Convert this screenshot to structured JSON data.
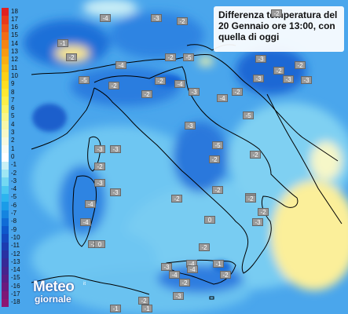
{
  "title_lines": [
    "Differenza temperatura del",
    "20 Gennaio ore 13:00, con",
    "quella di oggi"
  ],
  "legend": {
    "values": [
      "18",
      "17",
      "16",
      "15",
      "14",
      "13",
      "12",
      "11",
      "10",
      "9",
      "8",
      "7",
      "6",
      "5",
      "4",
      "3",
      "2",
      "1",
      "0",
      "-1",
      "-2",
      "-3",
      "-4",
      "-5",
      "-6",
      "-7",
      "-8",
      "-9",
      "-10",
      "-11",
      "-12",
      "-13",
      "-14",
      "-15",
      "-16",
      "-17",
      "-18"
    ],
    "colors": [
      "#e02020",
      "#e83a1a",
      "#ee5418",
      "#f26c16",
      "#f58414",
      "#f79a12",
      "#f9ae12",
      "#fbc014",
      "#fcd018",
      "#fdde22",
      "#fde832",
      "#fcef4a",
      "#fbf468",
      "#f8f68a",
      "#f6f7aa",
      "#f6f8c8",
      "#f6f9e0",
      "#f8fbf4",
      "#ffffff",
      "#c8f0f6",
      "#9ee6f4",
      "#74d8f2",
      "#4cc8f0",
      "#2cb4ee",
      "#1a9ce8",
      "#1484e0",
      "#106cd6",
      "#0e58cc",
      "#1448bf",
      "#1c3cb0",
      "#2832a2",
      "#362a96",
      "#46248c",
      "#581e84",
      "#6a1a7e",
      "#7c1878",
      "#8c1674"
    ]
  },
  "map_badges": [
    "-4",
    "-3",
    "-2",
    "-2",
    "-1",
    "-2",
    "-4",
    "-2",
    "-5",
    "-3",
    "-3",
    "-2",
    "-3",
    "-2",
    "-3",
    "-5",
    "-2",
    "-2",
    "-4",
    "-2",
    "-3",
    "-2",
    "-3",
    "-4",
    "-5",
    "-3",
    "-3",
    "-5",
    "-2",
    "-2",
    "-2",
    "-3",
    "-2",
    "-3",
    "-2",
    "-3",
    "-4",
    "-4",
    "-2",
    "-3",
    "-2",
    "0",
    "0",
    "-2",
    "-4",
    "-1",
    "-2",
    "-4",
    "-3",
    "-2",
    "-2",
    "-4",
    "-3",
    "-2",
    "-1",
    "-1"
  ],
  "logo": {
    "line1": "Meteo",
    "line2": "giornale",
    "small": "it"
  },
  "colors": {
    "sea_blue": "#3a8ee6",
    "light_blue": "#7fd0f2",
    "yellow": "#fbf0a0",
    "land_outline": "#000000"
  }
}
